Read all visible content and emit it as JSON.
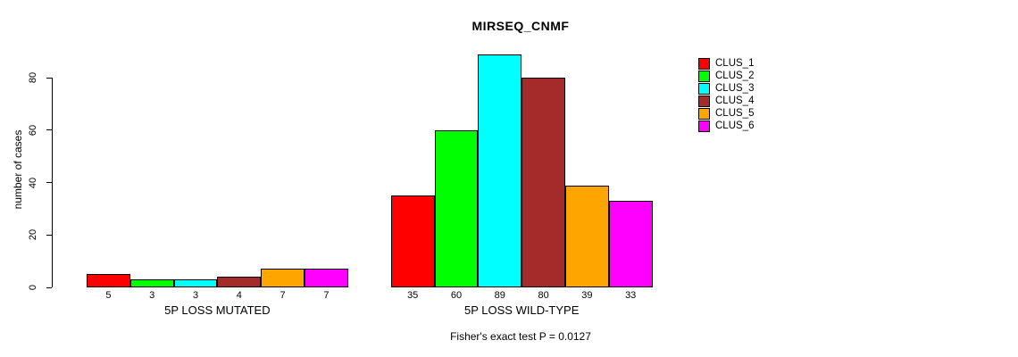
{
  "chart_data": {
    "type": "bar",
    "title": "MIRSEQ_CNMF",
    "ylabel": "number of cases",
    "xlabel": "",
    "yticks": [
      0,
      20,
      40,
      60,
      80
    ],
    "ylim": [
      0,
      89
    ],
    "grid": false,
    "legend_position": "right-top",
    "groups": [
      {
        "label": "5P LOSS MUTATED",
        "values": [
          5,
          3,
          3,
          4,
          7,
          7
        ]
      },
      {
        "label": "5P LOSS WILD-TYPE",
        "values": [
          35,
          60,
          89,
          80,
          39,
          33
        ]
      }
    ],
    "series_colors": [
      "#FF0000",
      "#00FF00",
      "#00FFFF",
      "#A52A2A",
      "#FFA500",
      "#FF00FF"
    ],
    "legend": [
      {
        "label": "CLUS_1",
        "color": "#FF0000"
      },
      {
        "label": "CLUS_2",
        "color": "#00FF00"
      },
      {
        "label": "CLUS_3",
        "color": "#00FFFF"
      },
      {
        "label": "CLUS_4",
        "color": "#A52A2A"
      },
      {
        "label": "CLUS_5",
        "color": "#FFA500"
      },
      {
        "label": "CLUS_6",
        "color": "#FF00FF"
      }
    ],
    "subtitle": "Fisher's exact test P = 0.0127"
  }
}
